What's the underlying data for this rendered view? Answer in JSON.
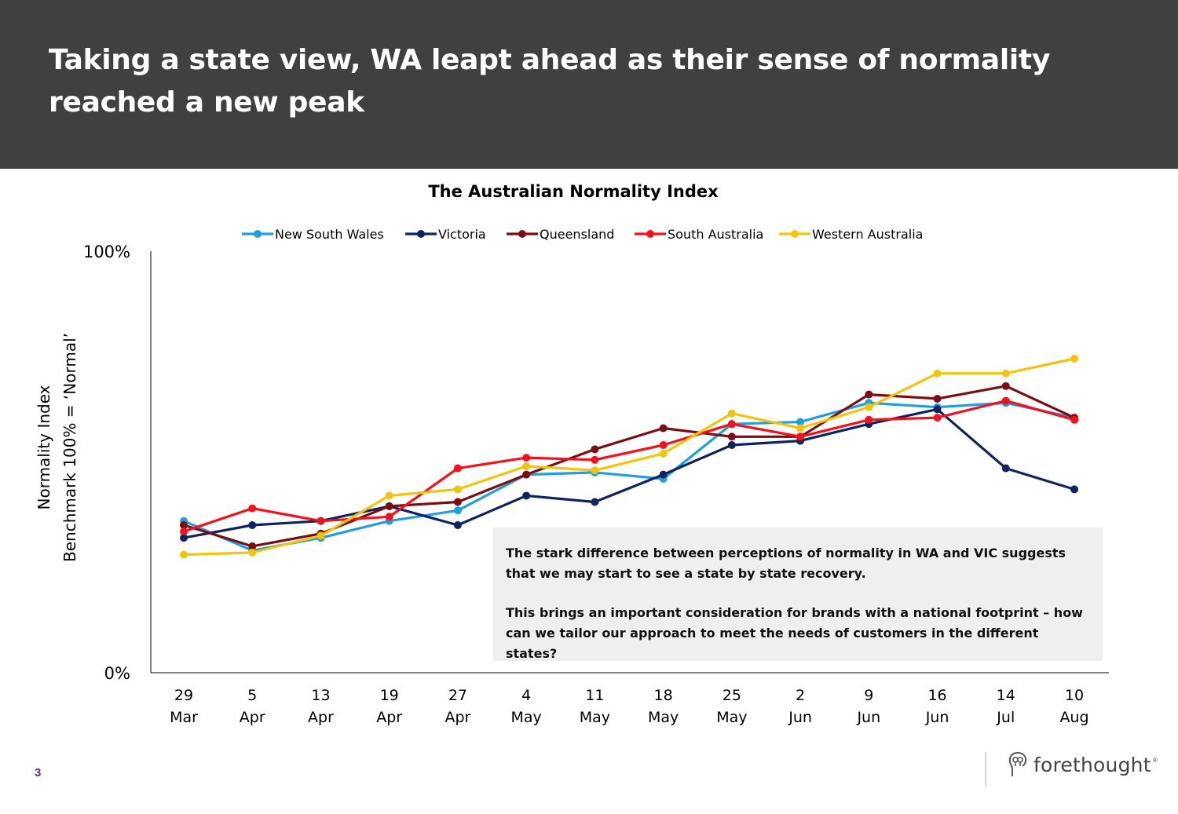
{
  "header": {
    "title": "Taking a state view, WA leapt ahead as their sense of normality reached a new peak"
  },
  "chart_data": {
    "type": "line",
    "title": "The Australian Normality Index",
    "ylabel": "Normality Index",
    "ylabel_sub": "Benchmark 100% = ‘Normal’",
    "ylim": [
      0,
      100
    ],
    "y_ticks": [
      "0%",
      "100%"
    ],
    "legend_position": "top",
    "grid": false,
    "categories": [
      {
        "day": "29",
        "month": "Mar"
      },
      {
        "day": "5",
        "month": "Apr"
      },
      {
        "day": "13",
        "month": "Apr"
      },
      {
        "day": "19",
        "month": "Apr"
      },
      {
        "day": "27",
        "month": "Apr"
      },
      {
        "day": "4",
        "month": "May"
      },
      {
        "day": "11",
        "month": "May"
      },
      {
        "day": "18",
        "month": "May"
      },
      {
        "day": "25",
        "month": "May"
      },
      {
        "day": "2",
        "month": "Jun"
      },
      {
        "day": "9",
        "month": "Jun"
      },
      {
        "day": "16",
        "month": "Jun"
      },
      {
        "day": "14",
        "month": "Jul"
      },
      {
        "day": "10",
        "month": "Aug"
      }
    ],
    "series": [
      {
        "name": "New South Wales",
        "color": "#1f9fe0",
        "values": [
          36,
          29,
          32,
          36,
          38.5,
          47,
          47.5,
          46,
          59,
          59.5,
          64,
          63,
          64,
          60.5
        ]
      },
      {
        "name": "Victoria",
        "color": "#0d2461",
        "values": [
          32,
          35,
          36,
          39.5,
          35,
          42,
          40.5,
          47,
          54,
          55,
          59,
          62.5,
          48.5,
          43.5
        ]
      },
      {
        "name": "Queensland",
        "color": "#7b0e12",
        "values": [
          35,
          30,
          33,
          39.5,
          40.5,
          47,
          53,
          58,
          56,
          56,
          66,
          65,
          68,
          60.5
        ]
      },
      {
        "name": "South Australia",
        "color": "#f5111b",
        "values": [
          33.5,
          39,
          36,
          37,
          48.5,
          51,
          50.5,
          54,
          59,
          56,
          60,
          60.5,
          64.5,
          60
        ]
      },
      {
        "name": "Western Australia",
        "color": "#f2c40c",
        "values": [
          28,
          28.5,
          32.5,
          42,
          43.5,
          49,
          48,
          52,
          61.5,
          58,
          63,
          71,
          71,
          74.5
        ]
      }
    ]
  },
  "callout": {
    "paragraph1": "The stark difference between perceptions of normality in WA and VIC suggests that we may start to see a state by state recovery.",
    "paragraph2": "This brings an important consideration for brands with a national footprint – how can we tailor our approach to meet the needs of customers in the different states?"
  },
  "footer": {
    "page_number": "3",
    "logo_text": "forethought",
    "logo_reg": "®"
  }
}
